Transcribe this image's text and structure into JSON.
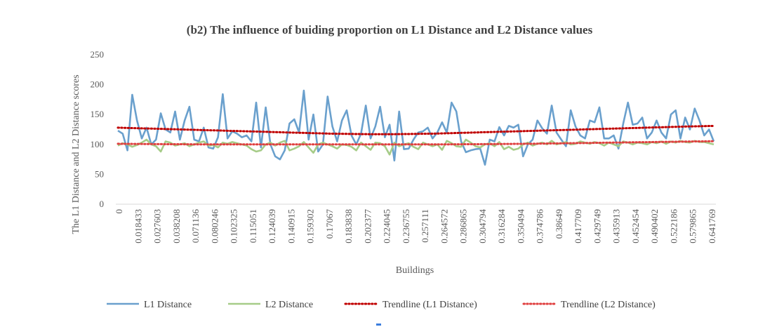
{
  "chart_data": {
    "type": "line",
    "title": "(b2) The influence of buiding proportion on L1 Distance and L2 Distance values",
    "xlabel": "Buildings",
    "ylabel": "The L1 Distance and L2 Distance scores",
    "ylim": [
      0,
      250
    ],
    "yticks": [
      0,
      50,
      100,
      150,
      200,
      250
    ],
    "grid": false,
    "legend_position": "bottom",
    "x_tick_labels": [
      "0",
      "0.018433",
      "0.027603",
      "0.038208",
      "0.071136",
      "0.080246",
      "0.102325",
      "0.115051",
      "0.124039",
      "0.140915",
      "0.159302",
      "0.17067",
      "0.183838",
      "0.202377",
      "0.224045",
      "0.236755",
      "0.257111",
      "0.264572",
      "0.286865",
      "0.304794",
      "0.316284",
      "0.350494",
      "0.374786",
      "0.38649",
      "0.417709",
      "0.429749",
      "0.435913",
      "0.452454",
      "0.490402",
      "0.522186",
      "0.579865",
      "0.641769"
    ],
    "series": [
      {
        "name": "L1 Distance",
        "color": "#6aa0cd",
        "style": "solid",
        "values": [
          123,
          118,
          90,
          183,
          140,
          110,
          128,
          100,
          108,
          152,
          125,
          120,
          155,
          108,
          140,
          163,
          108,
          105,
          128,
          95,
          93,
          112,
          184,
          110,
          122,
          118,
          112,
          115,
          105,
          170,
          95,
          162,
          100,
          80,
          75,
          90,
          135,
          142,
          120,
          190,
          108,
          150,
          88,
          100,
          180,
          130,
          105,
          140,
          157,
          115,
          100,
          118,
          165,
          110,
          130,
          163,
          112,
          133,
          73,
          155,
          92,
          93,
          108,
          120,
          122,
          128,
          110,
          120,
          137,
          120,
          170,
          155,
          105,
          87,
          90,
          92,
          93,
          66,
          108,
          105,
          129,
          115,
          131,
          128,
          133,
          80,
          100,
          108,
          140,
          127,
          118,
          165,
          120,
          108,
          97,
          157,
          130,
          115,
          110,
          140,
          137,
          162,
          110,
          110,
          115,
          93,
          135,
          170,
          133,
          135,
          145,
          110,
          120,
          140,
          120,
          110,
          150,
          157,
          110,
          145,
          125,
          160,
          140,
          115,
          125,
          105
        ]
      },
      {
        "name": "L2 Distance",
        "color": "#a6cc88",
        "style": "solid",
        "values": [
          98,
          102,
          100,
          96,
          99,
          103,
          108,
          100,
          97,
          88,
          105,
          103,
          98,
          100,
          102,
          97,
          100,
          103,
          105,
          98,
          99,
          95,
          103,
          101,
          104,
          102,
          100,
          98,
          92,
          88,
          90,
          100,
          103,
          98,
          103,
          106,
          90,
          93,
          97,
          104,
          95,
          86,
          100,
          103,
          100,
          97,
          93,
          100,
          99,
          96,
          90,
          103,
          97,
          91,
          103,
          102,
          97,
          83,
          103,
          97,
          100,
          102,
          96,
          92,
          103,
          100,
          97,
          100,
          91,
          106,
          102,
          97,
          96,
          108,
          103,
          97,
          95,
          100,
          102,
          97,
          104,
          92,
          96,
          91,
          93,
          100,
          103,
          98,
          101,
          103,
          100,
          106,
          100,
          102,
          104,
          100,
          101,
          105,
          103,
          101,
          104,
          102,
          98,
          103,
          100,
          97,
          105,
          103,
          100,
          103,
          102,
          100,
          104,
          102,
          105,
          101,
          105,
          103,
          106,
          104,
          103,
          106,
          104,
          104,
          102,
          100
        ]
      },
      {
        "name": "Trendline (L1 Distance)",
        "color": "#c00000",
        "style": "dotted",
        "values": [
          128,
          127.6,
          127.2,
          126.8,
          126.4,
          126,
          125.6,
          125.2,
          124.8,
          124.4,
          124,
          123.6,
          123.2,
          122.8,
          122.4,
          122,
          121.6,
          121.2,
          120.8,
          120.4,
          120,
          119.6,
          119.2,
          118.8,
          118.4,
          118,
          117.8,
          117.6,
          117.4,
          117.2,
          117,
          117,
          117,
          117.2,
          117.4,
          117.6,
          117.8,
          118,
          118.4,
          118.8,
          119.2,
          119.6,
          120,
          120.4,
          120.8,
          121.2,
          121.6,
          122,
          122.4,
          122.8,
          123.2,
          123.6,
          124,
          124.4,
          124.8,
          125.2,
          125.6,
          126,
          126.4,
          126.8,
          127.2,
          127.6,
          128,
          128.4,
          128.8,
          129.2,
          129.6,
          130,
          130.3,
          130.6,
          131
        ]
      },
      {
        "name": "Trendline (L2 Distance)",
        "color": "#e04040",
        "style": "dotted",
        "values": [
          101,
          100.9,
          100.8,
          100.7,
          100.6,
          100.5,
          100.4,
          100.3,
          100.2,
          100.1,
          100,
          100,
          100,
          100,
          100,
          100,
          100,
          100,
          100,
          100,
          100,
          100,
          100,
          100,
          100,
          100,
          100,
          100,
          100,
          100,
          100,
          100,
          100,
          100,
          100,
          100,
          100,
          100,
          100,
          100.1,
          100.2,
          100.3,
          100.4,
          100.5,
          100.6,
          100.7,
          100.8,
          100.9,
          101,
          101.2,
          101.4,
          101.6,
          101.8,
          102,
          102.2,
          102.4,
          102.6,
          102.8,
          103,
          103.2,
          103.4,
          103.6,
          103.8,
          104,
          104.2,
          104.4,
          104.6,
          104.8,
          105,
          105.2,
          105.4
        ]
      }
    ]
  }
}
